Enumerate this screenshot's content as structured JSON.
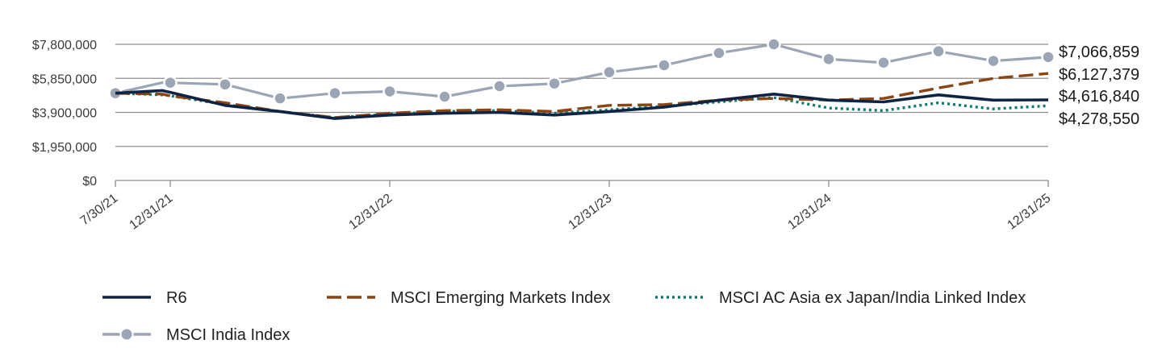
{
  "chart_data": {
    "type": "line",
    "title": "",
    "xlabel": "",
    "ylabel": "",
    "ylim": [
      0,
      7800000
    ],
    "y_ticks": [
      {
        "value": 0,
        "label": "$0"
      },
      {
        "value": 1950000,
        "label": "$1,950,000"
      },
      {
        "value": 3900000,
        "label": "$3,900,000"
      },
      {
        "value": 5850000,
        "label": "$5,850,000"
      },
      {
        "value": 7800000,
        "label": "$7,800,000"
      }
    ],
    "x_ticks": [
      {
        "index": 0,
        "label": "7/30/21"
      },
      {
        "index": 1,
        "label": "12/31/21"
      },
      {
        "index": 5,
        "label": "12/31/22"
      },
      {
        "index": 9,
        "label": "12/31/23"
      },
      {
        "index": 13,
        "label": "12/31/24"
      },
      {
        "index": 17,
        "label": "12/31/25"
      }
    ],
    "x_dates": [
      "7/30/21",
      "10/31/21",
      "12/31/21",
      "3/31/22",
      "6/30/22",
      "9/30/22",
      "12/31/22",
      "3/31/23",
      "6/30/23",
      "9/30/23",
      "12/31/23",
      "3/31/24",
      "6/30/24",
      "9/30/24",
      "12/31/24",
      "3/31/25",
      "6/30/25",
      "9/30/25",
      "12/31/25"
    ],
    "x_positions": [
      0,
      0.85,
      1.0,
      2.0,
      3.0,
      4.0,
      5.0,
      6.0,
      7.0,
      8.0,
      9.0,
      10.0,
      11.0,
      12.0,
      13.0,
      14.0,
      15.0,
      16.0,
      17.0
    ],
    "series": [
      {
        "name": "R6",
        "key": "r6",
        "color": "#0f2444",
        "style": "solid",
        "values": [
          5000000,
          5150000,
          5050000,
          4300000,
          3950000,
          3550000,
          3750000,
          3850000,
          3900000,
          3750000,
          3950000,
          4200000,
          4600000,
          4950000,
          4600000,
          4500000,
          4900000,
          4600000,
          4616840
        ]
      },
      {
        "name": "MSCI Emerging Markets Index",
        "key": "em",
        "color": "#8b4513",
        "style": "dashed",
        "values": [
          5000000,
          4950000,
          4850000,
          4450000,
          3950000,
          3600000,
          3850000,
          4000000,
          4050000,
          3950000,
          4300000,
          4350000,
          4600000,
          4700000,
          4600000,
          4700000,
          5300000,
          5850000,
          6127379
        ]
      },
      {
        "name": "MSCI AC Asia ex Japan/India Linked Index",
        "key": "asia",
        "color": "#0f7a6e",
        "style": "dotted",
        "values": [
          5000000,
          4900000,
          4850000,
          4350000,
          3950000,
          3600000,
          3800000,
          3950000,
          4000000,
          3850000,
          4050000,
          4250000,
          4500000,
          4750000,
          4150000,
          4000000,
          4450000,
          4100000,
          4278550
        ]
      },
      {
        "name": "MSCI India Index",
        "key": "india",
        "color": "#9aa5b5",
        "style": "solid-markers",
        "values": [
          5000000,
          5600000,
          5600000,
          5500000,
          4700000,
          5000000,
          5100000,
          4800000,
          5400000,
          5550000,
          6200000,
          6600000,
          7300000,
          7800000,
          6950000,
          6750000,
          7400000,
          6850000,
          7066859
        ]
      }
    ],
    "end_labels": [
      "$7,066,859",
      "$6,127,379",
      "$4,616,840",
      "$4,278,550"
    ],
    "legend_placement": "bottom"
  }
}
